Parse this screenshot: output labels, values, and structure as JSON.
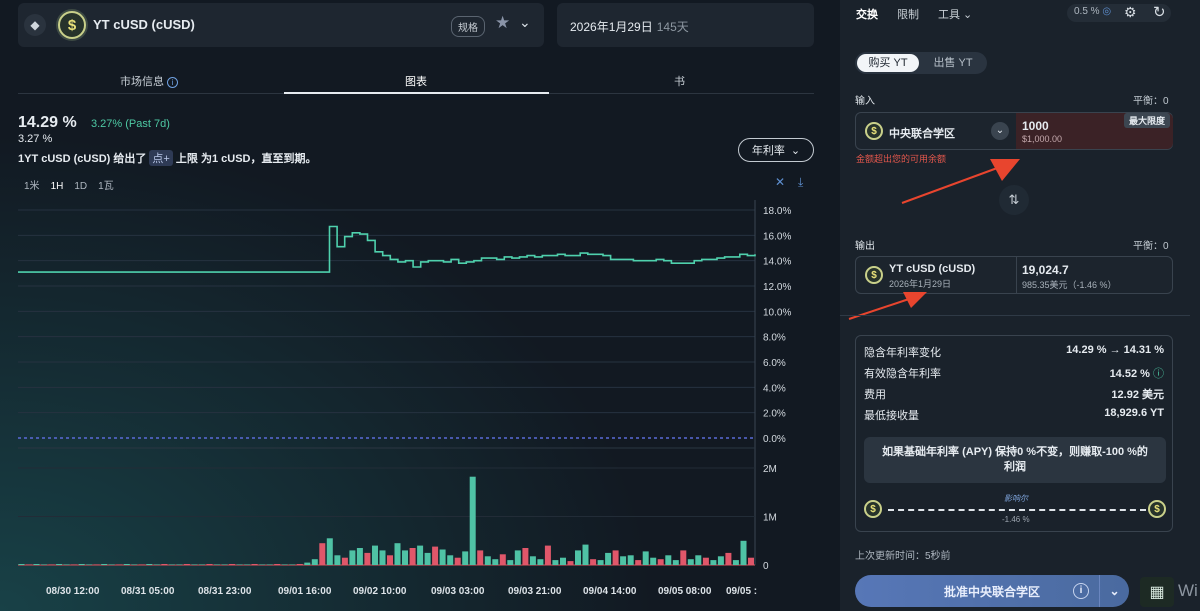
{
  "header": {
    "asset_name": "YT cUSD (cUSD)",
    "badge": "规格",
    "date": "2026年1月29日",
    "days": "145天"
  },
  "tabs": [
    "市场信息",
    "图表",
    "书"
  ],
  "stats": {
    "apy_big": "14.29 %",
    "apy_change": "3.27% (Past 7d)",
    "apy_small": "3.27 %",
    "desc_prefix": "1YT cUSD (cUSD) 给出了",
    "desc_pill": "点+",
    "desc_bold": "上限",
    "desc_suffix": "为1 cUSD，直至到期。"
  },
  "dropdown_label": "年利率",
  "timeframes": [
    "1米",
    "1H",
    "1D",
    "1瓦"
  ],
  "chart_data": {
    "type": "line",
    "apy_axis_ticks": [
      "18.0%",
      "16.0%",
      "14.0%",
      "12.0%",
      "10.0%",
      "8.0%",
      "6.0%",
      "4.0%",
      "2.0%",
      "0.0%"
    ],
    "volume_axis_ticks": [
      "2M",
      "1M",
      "0"
    ],
    "x_ticks": [
      "08/30 12:00",
      "08/31 05:00",
      "08/31 23:00",
      "09/01 16:00",
      "09/02 10:00",
      "09/03 03:00",
      "09/03 21:00",
      "09/04 14:00",
      "09/05 08:00",
      "09/05 :"
    ],
    "apy_series": [
      13.1,
      13.1,
      13.1,
      13.1,
      13.1,
      13.1,
      13.1,
      13.1,
      13.1,
      13.1,
      13.1,
      13.1,
      13.1,
      13.1,
      13.1,
      13.1,
      13.1,
      13.1,
      13.1,
      13.1,
      13.1,
      13.1,
      13.1,
      13.1,
      13.1,
      13.1,
      13.1,
      13.1,
      13.1,
      13.1,
      13.1,
      13.1,
      13.1,
      13.1,
      13.1,
      13.1,
      13.1,
      13.1,
      13.1,
      13.1,
      13.1,
      16.7,
      15.1,
      15.9,
      16.2,
      16.1,
      15.6,
      14.7,
      14.4,
      14.1,
      13.9,
      14.0,
      13.5,
      13.9,
      14.0,
      14.0,
      13.9,
      14.1,
      13.8,
      13.9,
      14.0,
      14.2,
      14.2,
      14.1,
      14.3,
      14.2,
      14.3,
      14.4,
      14.3,
      14.4,
      14.4,
      14.5,
      14.4,
      14.4,
      14.6,
      14.5,
      14.5,
      14.4,
      14.1,
      14.1,
      14.1,
      14.0,
      14.0,
      14.0,
      14.1,
      14.0,
      13.8,
      13.8,
      13.8,
      14.0,
      14.1,
      14.1,
      14.2,
      14.3,
      14.3,
      14.5,
      14.4,
      14.5
    ],
    "volume_m": [
      0.02,
      0.01,
      0.02,
      0.01,
      0.01,
      0.02,
      0.01,
      0.01,
      0.02,
      0.01,
      0.01,
      0.02,
      0.01,
      0.01,
      0.02,
      0.01,
      0.01,
      0.02,
      0.01,
      0.02,
      0.01,
      0.01,
      0.02,
      0.01,
      0.01,
      0.02,
      0.01,
      0.01,
      0.02,
      0.01,
      0.01,
      0.02,
      0.01,
      0.01,
      0.02,
      0.01,
      0.01,
      0.02,
      0.05,
      0.12,
      0.45,
      0.55,
      0.2,
      0.15,
      0.3,
      0.35,
      0.25,
      0.4,
      0.3,
      0.2,
      0.45,
      0.3,
      0.35,
      0.4,
      0.25,
      0.38,
      0.32,
      0.2,
      0.15,
      0.28,
      1.82,
      0.3,
      0.18,
      0.12,
      0.22,
      0.1,
      0.3,
      0.35,
      0.18,
      0.12,
      0.4,
      0.1,
      0.15,
      0.08,
      0.3,
      0.42,
      0.12,
      0.1,
      0.25,
      0.3,
      0.18,
      0.2,
      0.1,
      0.28,
      0.15,
      0.12,
      0.2,
      0.1,
      0.3,
      0.12,
      0.2,
      0.15,
      0.1,
      0.18,
      0.25,
      0.1,
      0.5,
      0.15
    ],
    "volume_colors": [
      "g",
      "r"
    ],
    "ylim_apy": [
      0,
      18
    ],
    "ylim_vol": [
      0,
      2
    ]
  },
  "right": {
    "nav": [
      "交换",
      "限制",
      "工具"
    ],
    "slippage": "0.5 %",
    "buy": "购买 YT",
    "sell": "出售 YT",
    "input_label": "输入",
    "input_balance": "平衡：0",
    "input_token": "中央联合学区",
    "input_amount": "1000",
    "input_usd": "$1,000.00",
    "max_label": "最大限度",
    "error": "金额超出您的可用余额",
    "output_label": "输出",
    "output_balance": "平衡：0",
    "output_token": "YT cUSD (cUSD)",
    "output_date": "2026年1月29日",
    "output_amount": "19,024.7",
    "output_usd": "985.35美元（-1.46 %）",
    "details": [
      {
        "k": "隐含年利率变化",
        "v": "14.29 % → 14.31 %"
      },
      {
        "k": "有效隐含年利率",
        "v": "14.52 %"
      },
      {
        "k": "费用",
        "v": "12.92 美元"
      },
      {
        "k": "最低接收量",
        "v": "18,929.6 YT"
      }
    ],
    "warn": "如果基础年利率 (APY) 保持0 %不变，则赚取-100 %的利润",
    "slider_top": "影响尔",
    "slider_bottom": "-1.46 %",
    "updated": "上次更新时间：5秒前",
    "approve": "批准中央联合学区",
    "ovl_text": "Wi"
  }
}
